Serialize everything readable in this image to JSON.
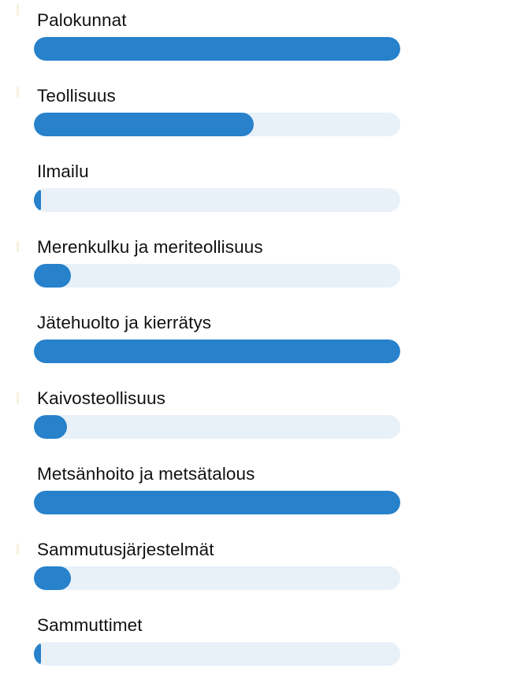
{
  "colors": {
    "bar": "#2781cb",
    "track": "#e8f0f8",
    "text": "#111111"
  },
  "chart_data": {
    "type": "bar",
    "orientation": "horizontal",
    "categories": [
      "Palokunnat",
      "Teollisuus",
      "Ilmailu",
      "Merenkulku ja meriteollisuus",
      "Jätehuolto ja kierrätys",
      "Kaivosteollisuus",
      "Metsänhoito ja metsätalous",
      "Sammutusjärjestelmät",
      "Sammuttimet"
    ],
    "values": [
      100,
      60,
      2,
      10,
      100,
      9,
      100,
      10,
      2
    ],
    "xlim": [
      0,
      100
    ],
    "grid": false,
    "legend": "none"
  }
}
